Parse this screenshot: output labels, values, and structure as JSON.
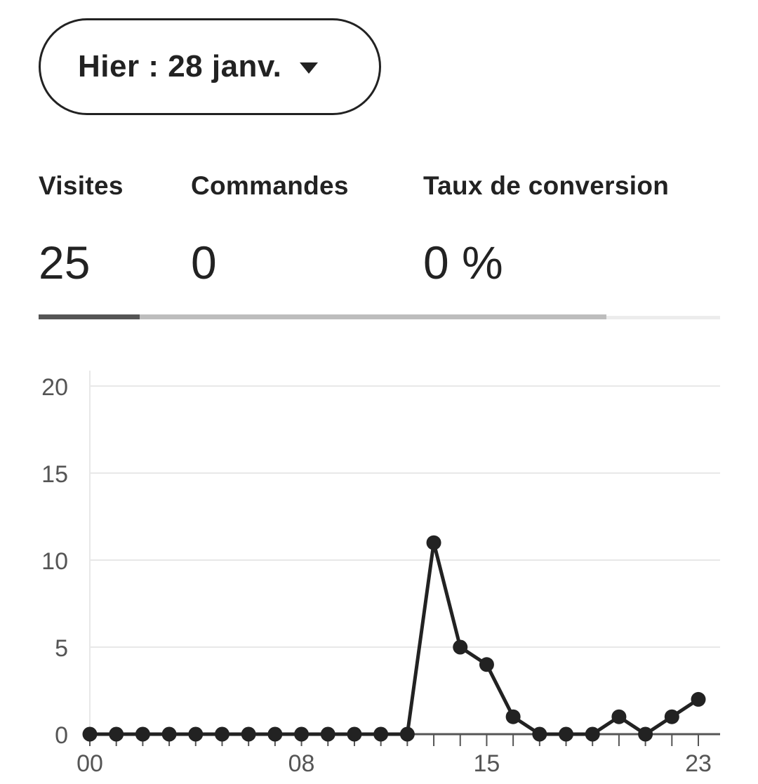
{
  "date_selector": {
    "label": "Hier : 28 janv.",
    "icon": "caret-down-icon"
  },
  "metrics": [
    {
      "label": "Visites",
      "value": "25"
    },
    {
      "label": "Commandes",
      "value": "0"
    },
    {
      "label": "Taux de conversion",
      "value": "0 %"
    }
  ],
  "tabs": {
    "active_index": 0
  },
  "chart_data": {
    "type": "line",
    "title": "",
    "xlabel": "",
    "ylabel": "",
    "x": [
      "00",
      "01",
      "02",
      "03",
      "04",
      "05",
      "06",
      "07",
      "08",
      "09",
      "10",
      "11",
      "12",
      "13",
      "14",
      "15",
      "16",
      "17",
      "18",
      "19",
      "20",
      "21",
      "22",
      "23"
    ],
    "x_tick_labels": [
      "00",
      "08",
      "15",
      "23"
    ],
    "series": [
      {
        "values": [
          0,
          0,
          0,
          0,
          0,
          0,
          0,
          0,
          0,
          0,
          0,
          0,
          0,
          11,
          5,
          4,
          1,
          0,
          0,
          0,
          1,
          0,
          1,
          2
        ]
      }
    ],
    "ylim": [
      0,
      20
    ],
    "y_ticks": [
      0,
      5,
      10,
      15,
      20
    ],
    "grid": true,
    "colors": {
      "line": "#222222",
      "grid": "#e8e8e8",
      "axis": "#555555",
      "tick_text": "#555555"
    }
  }
}
